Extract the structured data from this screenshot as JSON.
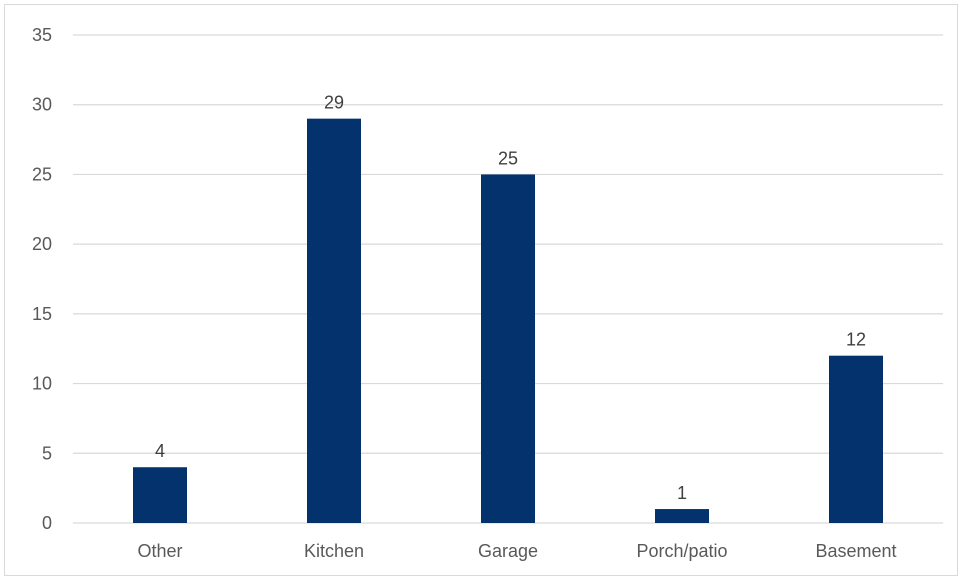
{
  "chart_data": {
    "type": "bar",
    "title": "",
    "xlabel": "",
    "ylabel": "",
    "categories": [
      "Other",
      "Kitchen",
      "Garage",
      "Porch/patio",
      "Basement"
    ],
    "values": [
      4,
      29,
      25,
      1,
      12
    ],
    "data_labels": [
      "4",
      "29",
      "25",
      "1",
      "12"
    ],
    "ylim": [
      0,
      35
    ],
    "yticks": [
      "0",
      "5",
      "10",
      "15",
      "20",
      "25",
      "30",
      "35"
    ],
    "grid": true,
    "legend": "none",
    "bar_color": "#03326c",
    "grid_color": "#d9d9d9"
  }
}
